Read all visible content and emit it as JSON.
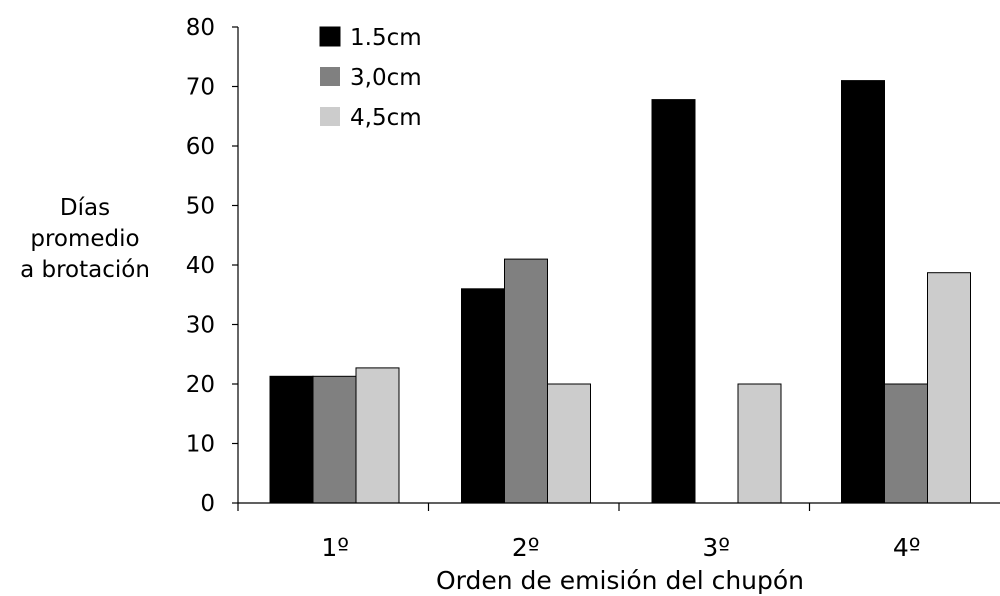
{
  "chart_data": {
    "type": "bar",
    "title": "",
    "xlabel": "Orden de emisión del chupón",
    "ylabel_lines": [
      "Días",
      "promedio",
      "a brotación"
    ],
    "categories": [
      "1º",
      "2º",
      "3º",
      "4º"
    ],
    "ylim": [
      0,
      80
    ],
    "yticks": [
      0,
      10,
      20,
      30,
      40,
      50,
      60,
      70,
      80
    ],
    "grid": false,
    "legend_position": "top-left",
    "series": [
      {
        "name": "1.5cm",
        "color": "#000000",
        "values": [
          21.3,
          36,
          67.8,
          71
        ]
      },
      {
        "name": "3,0cm",
        "color": "#808080",
        "values": [
          21.3,
          41,
          0,
          20
        ]
      },
      {
        "name": "4,5cm",
        "color": "#cccccc",
        "values": [
          22.7,
          20,
          20,
          38.7
        ]
      }
    ]
  }
}
